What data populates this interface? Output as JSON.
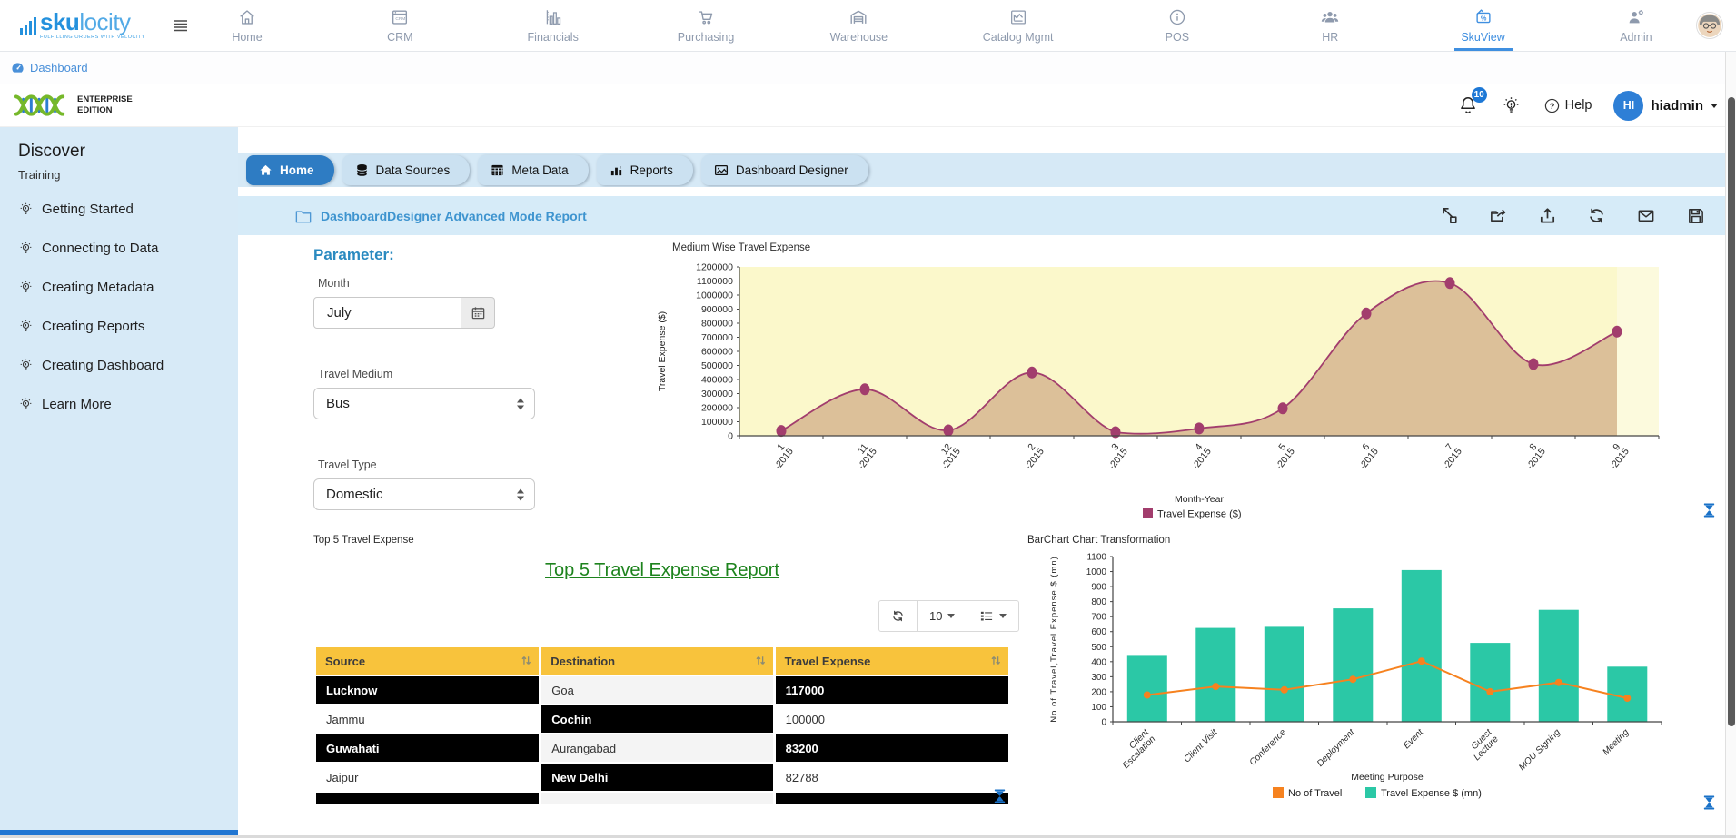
{
  "colors": {
    "brand_blue": "#2491dd",
    "nav_active_blue": "#3f8fe0",
    "sidebar_bg": "#d7eaf7",
    "tab_active_blue": "#2e7cc3",
    "band_bg": "#d6ebf8",
    "table_header_yellow": "#f8c33c",
    "link_green": "#1d831d",
    "hourglass_blue": "#1a72c8",
    "avatar_blue": "#2e7fd6",
    "badge_blue": "#1d78d6"
  },
  "topnav": {
    "logo": {
      "bold": "sku",
      "light": "locity",
      "tagline": "FULFILLING ORDERS WITH VELOCITY"
    },
    "items": [
      {
        "label": "Home",
        "icon": "home-icon",
        "active": false
      },
      {
        "label": "CRM",
        "icon": "crm-icon",
        "active": false
      },
      {
        "label": "Financials",
        "icon": "financials-icon",
        "active": false
      },
      {
        "label": "Purchasing",
        "icon": "purchasing-icon",
        "active": false
      },
      {
        "label": "Warehouse",
        "icon": "warehouse-icon",
        "active": false
      },
      {
        "label": "Catalog Mgmt",
        "icon": "catalog-icon",
        "active": false
      },
      {
        "label": "POS",
        "icon": "pos-icon",
        "active": false
      },
      {
        "label": "HR",
        "icon": "hr-icon",
        "active": false
      },
      {
        "label": "SkuView",
        "icon": "skuview-icon",
        "active": true
      },
      {
        "label": "Admin",
        "icon": "admin-icon",
        "active": false
      }
    ]
  },
  "breadcrumb": {
    "label": "Dashboard"
  },
  "header": {
    "edition_line1": "ENTERPRISE",
    "edition_line2": "EDITION",
    "notification_count": "10",
    "help_label": "Help",
    "user_initials": "HI",
    "user_name": "hiadmin"
  },
  "sidebar": {
    "title": "Discover",
    "subtitle": "Training",
    "items": [
      {
        "label": "Getting Started",
        "icon": "bulb-icon"
      },
      {
        "label": "Connecting to Data",
        "icon": "bulb-icon"
      },
      {
        "label": "Creating Metadata",
        "icon": "bulb-icon"
      },
      {
        "label": "Creating Reports",
        "icon": "bulb-icon"
      },
      {
        "label": "Creating Dashboard",
        "icon": "bulb-icon"
      },
      {
        "label": "Learn More",
        "icon": "bulb-icon"
      }
    ]
  },
  "tabs": [
    {
      "label": "Home",
      "icon": "tab-home-icon",
      "active": true
    },
    {
      "label": "Data Sources",
      "icon": "database-icon",
      "active": false
    },
    {
      "label": "Meta Data",
      "icon": "metadata-icon",
      "active": false
    },
    {
      "label": "Reports",
      "icon": "reports-icon",
      "active": false
    },
    {
      "label": "Dashboard Designer",
      "icon": "designer-icon",
      "active": false
    }
  ],
  "report": {
    "title": "DashboardDesigner Advanced Mode Report",
    "toolbar": [
      {
        "name": "expand-icon"
      },
      {
        "name": "share-icon"
      },
      {
        "name": "export-icon"
      },
      {
        "name": "refresh-icon"
      },
      {
        "name": "email-icon"
      },
      {
        "name": "save-icon"
      }
    ]
  },
  "parameters": {
    "heading": "Parameter:",
    "fields": [
      {
        "label": "Month",
        "value": "July",
        "control": "date",
        "addon_icon": "calendar-icon"
      },
      {
        "label": "Travel Medium",
        "value": "Bus",
        "control": "select"
      },
      {
        "label": "Travel Type",
        "value": "Domestic",
        "control": "select"
      }
    ]
  },
  "table_widget": {
    "caption": "Top 5 Travel Expense",
    "link_title": "Top 5 Travel Expense Report",
    "page_size": "10",
    "columns": [
      "Source",
      "Destination",
      "Travel Expense"
    ],
    "rows": [
      [
        "Lucknow",
        "Goa",
        "117000"
      ],
      [
        "Jammu",
        "Cochin",
        "100000"
      ],
      [
        "Guwahati",
        "Aurangabad",
        "83200"
      ],
      [
        "Jaipur",
        "New Delhi",
        "82788"
      ]
    ]
  },
  "chart_data": [
    {
      "type": "area",
      "title": "Medium Wise Travel Expense",
      "categories": [
        "1-2015",
        "11-2015",
        "12-2015",
        "2-2015",
        "3-2015",
        "4-2015",
        "5-2015",
        "6-2015",
        "7-2015",
        "8-2015",
        "9-2015"
      ],
      "series": [
        {
          "name": "Travel Expense ($)",
          "values": [
            35000,
            330000,
            39000,
            450000,
            26000,
            52000,
            195000,
            870000,
            1085000,
            510000,
            740000
          ]
        }
      ],
      "xlabel": "Month-Year",
      "ylabel": "Travel Expense ($)",
      "ylim": [
        0,
        1200000
      ],
      "ytick_step": 100000,
      "legend_position": "bottom",
      "colors": {
        "line": "#a23d6d",
        "fill": "#d6b690",
        "plot_bg": "#fbf8cb",
        "plot_bg_right": "#fcfadd"
      }
    },
    {
      "type": "bar+line",
      "title": "BarChart Chart Transformation",
      "categories": [
        "Client Escalation",
        "Client Visit",
        "Conference",
        "Deployment",
        "Event",
        "Guest Lecture",
        "MOU Signing",
        "Meeting"
      ],
      "series": [
        {
          "name": "No of Travel",
          "type": "line",
          "color": "#f6821f",
          "values": [
            178,
            235,
            213,
            283,
            404,
            200,
            262,
            157
          ]
        },
        {
          "name": "Travel Expense $ (mn)",
          "type": "bar",
          "color": "#2bc8a6",
          "values": [
            445,
            625,
            632,
            755,
            1010,
            525,
            745,
            367
          ]
        }
      ],
      "xlabel": "Meeting Purpose",
      "ylabel": "No of Travel,Travel Expense $ (mn)",
      "ylim": [
        0,
        1100
      ],
      "ytick_step": 100,
      "legend_position": "bottom"
    }
  ]
}
